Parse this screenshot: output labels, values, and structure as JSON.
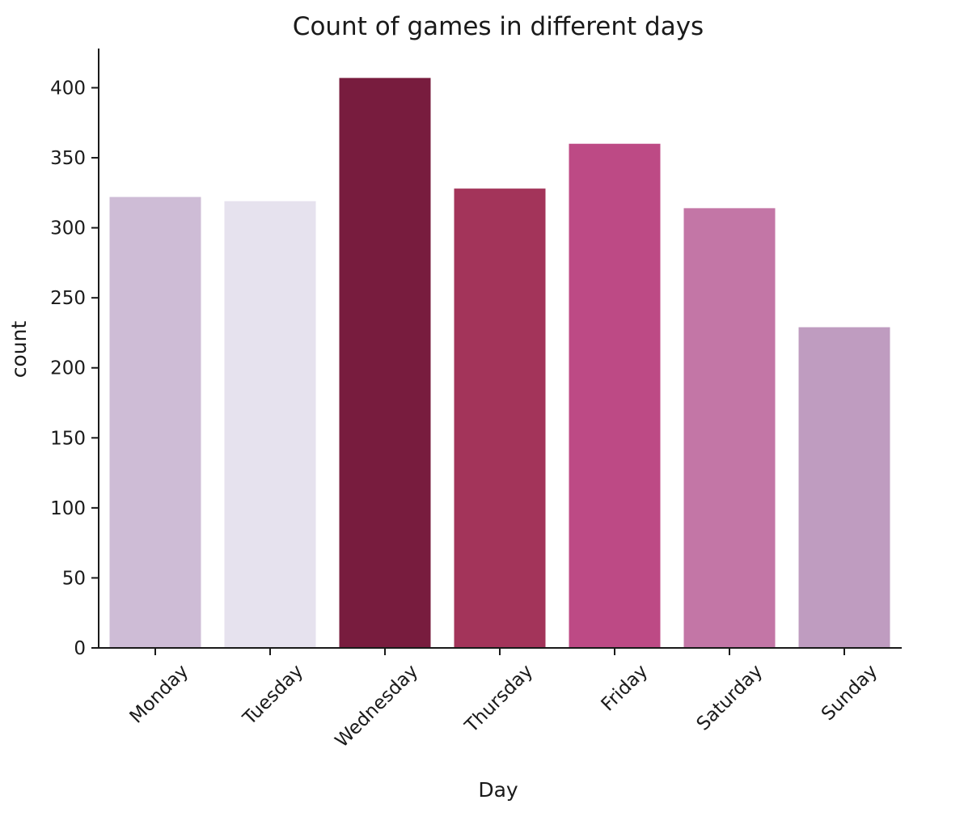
{
  "chart_data": {
    "type": "bar",
    "title": "Count of games in different days",
    "xlabel": "Day",
    "ylabel": "count",
    "categories": [
      "Monday",
      "Tuesday",
      "Wednesday",
      "Thursday",
      "Friday",
      "Saturday",
      "Sunday"
    ],
    "values": [
      322,
      319,
      407,
      328,
      360,
      314,
      229
    ],
    "colors": [
      "#cebcd6",
      "#e6e2ee",
      "#781c3e",
      "#a3345a",
      "#bd4a85",
      "#c376a6",
      "#bf9cc0"
    ],
    "ylim": [
      0,
      428
    ],
    "yticks": [
      0,
      50,
      100,
      150,
      200,
      250,
      300,
      350,
      400
    ],
    "grid": false,
    "legend": "none"
  }
}
